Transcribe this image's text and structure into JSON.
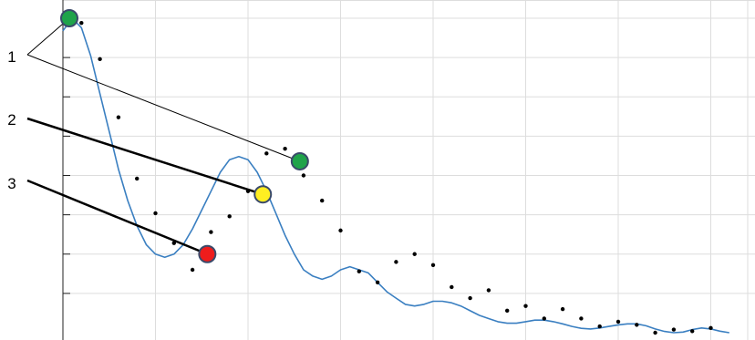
{
  "chart_data": {
    "type": "scatter",
    "title": "",
    "xlabel": "",
    "ylabel": "",
    "xlim": [
      0,
      36
    ],
    "ylim": [
      0,
      1.05
    ],
    "grid": true,
    "legend": "none",
    "samples": {
      "x": [
        0.6,
        1.0,
        2.0,
        3.0,
        4.0,
        5.0,
        6.0,
        7.0,
        8.0,
        9.0,
        10.0,
        11.0,
        12.0,
        13.0,
        14.0,
        15.0,
        16.0,
        17.0,
        18.0,
        19.0,
        20.0,
        21.0,
        22.0,
        23.0,
        24.0,
        25.0,
        26.0,
        27.0,
        28.0,
        29.0,
        30.0,
        31.0,
        32.0,
        33.0,
        34.0,
        35.0
      ],
      "y": [
        1.0,
        0.985,
        0.87,
        0.685,
        0.49,
        0.38,
        0.285,
        0.2,
        0.32,
        0.37,
        0.45,
        0.57,
        0.585,
        0.5,
        0.42,
        0.325,
        0.195,
        0.16,
        0.225,
        0.25,
        0.215,
        0.145,
        0.11,
        0.135,
        0.07,
        0.085,
        0.045,
        0.075,
        0.045,
        0.02,
        0.035,
        0.025,
        0.0,
        0.01,
        0.005,
        0.015
      ]
    },
    "fit_curve": {
      "x": [
        0,
        0.5,
        1,
        1.5,
        2,
        2.5,
        3,
        3.5,
        4,
        4.5,
        5,
        5.5,
        6,
        6.5,
        7,
        7.5,
        8,
        8.5,
        9,
        9.5,
        10,
        10.5,
        11,
        11.5,
        12,
        12.5,
        13,
        13.5,
        14,
        14.5,
        15,
        15.5,
        16,
        16.5,
        17,
        17.5,
        18,
        18.5,
        19,
        19.5,
        20,
        20.5,
        21,
        21.5,
        22,
        22.5,
        23,
        23.5,
        24,
        24.5,
        25,
        25.5,
        26,
        26.5,
        27,
        27.5,
        28,
        28.5,
        29,
        29.5,
        30,
        30.5,
        31,
        31.5,
        32,
        32.5,
        33,
        33.5,
        34,
        34.5,
        35,
        35.5,
        36
      ],
      "y": [
        0.96,
        1.0,
        0.97,
        0.88,
        0.76,
        0.64,
        0.52,
        0.42,
        0.34,
        0.28,
        0.25,
        0.24,
        0.25,
        0.28,
        0.33,
        0.39,
        0.45,
        0.51,
        0.55,
        0.56,
        0.55,
        0.51,
        0.45,
        0.38,
        0.31,
        0.25,
        0.2,
        0.18,
        0.17,
        0.18,
        0.2,
        0.21,
        0.2,
        0.19,
        0.16,
        0.13,
        0.11,
        0.09,
        0.085,
        0.09,
        0.1,
        0.1,
        0.095,
        0.085,
        0.07,
        0.055,
        0.045,
        0.035,
        0.03,
        0.03,
        0.035,
        0.04,
        0.04,
        0.035,
        0.028,
        0.02,
        0.014,
        0.012,
        0.015,
        0.02,
        0.025,
        0.028,
        0.028,
        0.022,
        0.012,
        0.004,
        0.0,
        0.002,
        0.01,
        0.015,
        0.012,
        0.005,
        0.0
      ],
      "color": "#3a7fc1"
    },
    "markers": [
      {
        "x": 0.0,
        "y": 1.0,
        "color": "#1fa34a"
      },
      {
        "x": 7.8,
        "y": 0.25,
        "color": "#ee1c1c"
      },
      {
        "x": 10.8,
        "y": 0.44,
        "color": "#ffee22"
      },
      {
        "x": 12.8,
        "y": 0.545,
        "color": "#1fa34a"
      }
    ],
    "callouts": [
      {
        "label": "1",
        "targets": [
          0,
          3
        ],
        "heavy": false
      },
      {
        "label": "2",
        "targets": [
          2
        ],
        "heavy": true
      },
      {
        "label": "3",
        "targets": [
          1
        ],
        "heavy": true
      }
    ],
    "x_gridlines": [
      5,
      10,
      15,
      20,
      25,
      30,
      35
    ],
    "y_gridlines": [
      0.125,
      0.25,
      0.375,
      0.5,
      0.625,
      0.75,
      0.875,
      1.0
    ]
  }
}
